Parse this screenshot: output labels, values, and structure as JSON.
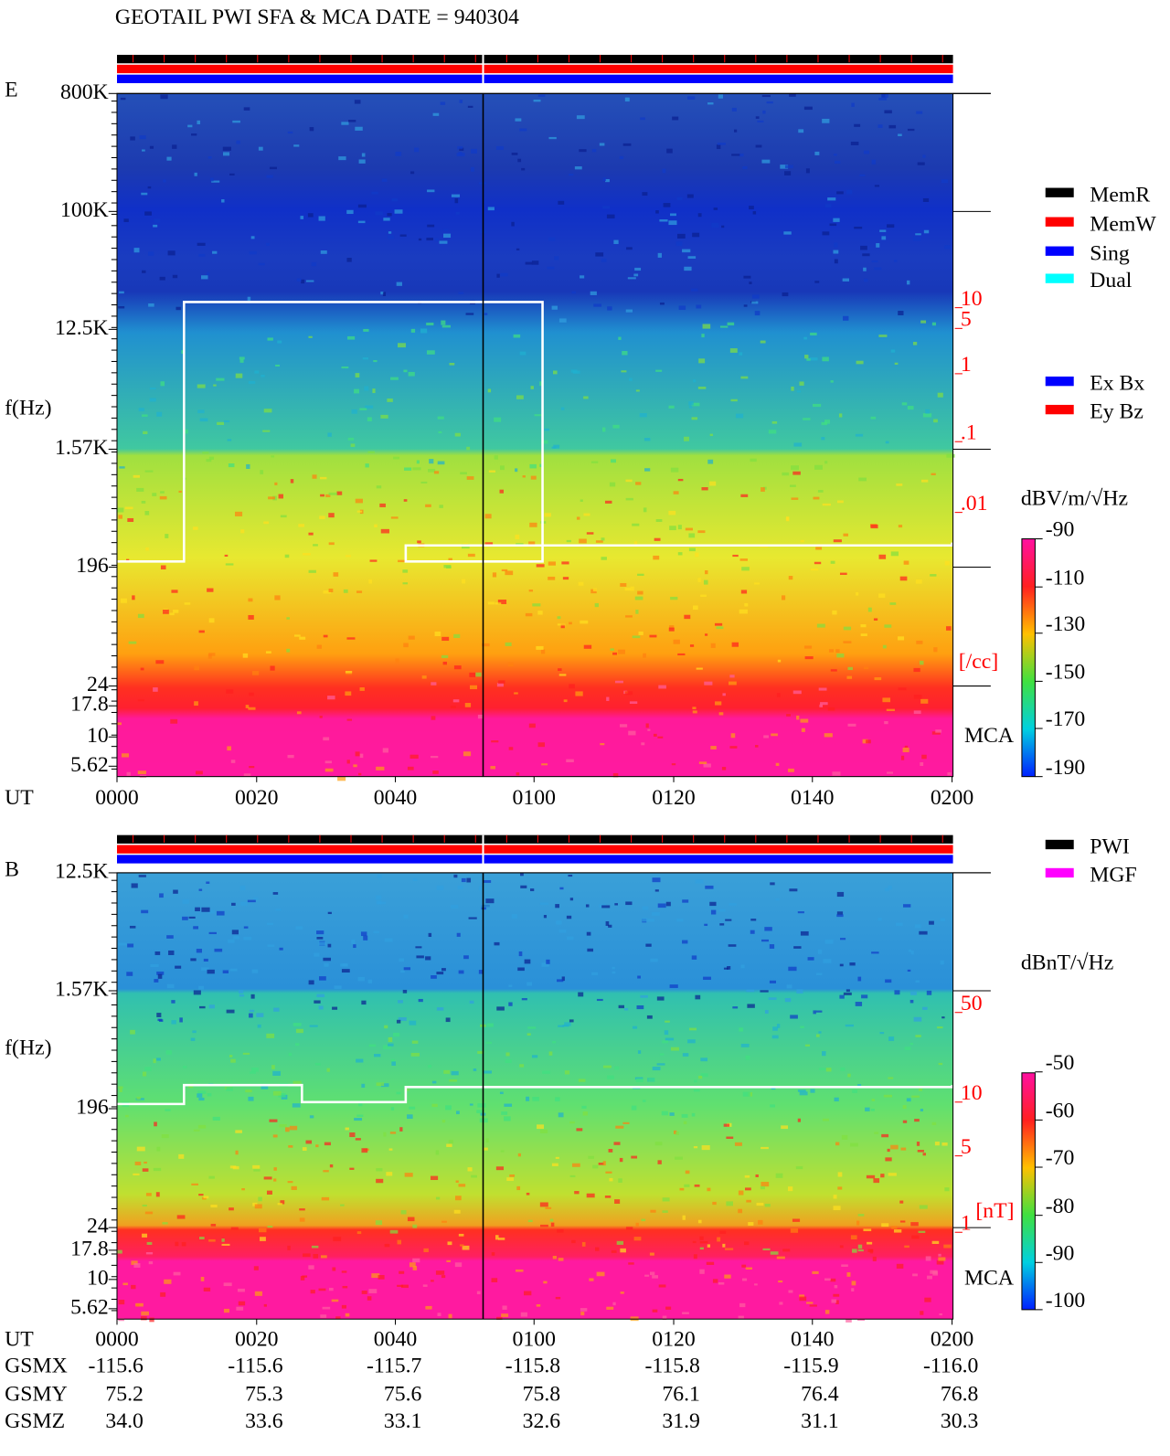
{
  "title": "GEOTAIL  PWI SFA & MCA   DATE = 940304",
  "panels": [
    {
      "label": "E",
      "ylabel": "f(Hz)",
      "freq_ticks": [
        "800K",
        "100K",
        "12.5K",
        "1.57K",
        "196",
        "24",
        "17.8",
        "10",
        "5.62"
      ],
      "time_label": "UT",
      "time_ticks": [
        "0000",
        "0020",
        "0040",
        "0100",
        "0120",
        "0140",
        "0200"
      ],
      "right_ticks": [
        "10",
        "5",
        "1",
        ".1",
        ".01"
      ],
      "right_unit": "[/cc]",
      "mca": "MCA",
      "legend": [
        "MemR",
        "MemW",
        "Sing",
        "Dual",
        "Ex Bx",
        "Ey Bz"
      ],
      "colorbar_label": "dBV/m/√Hz",
      "colorbar_ticks": [
        "-90",
        "-110",
        "-130",
        "-150",
        "-170",
        "-190"
      ]
    },
    {
      "label": "B",
      "ylabel": "f(Hz)",
      "freq_ticks": [
        "12.5K",
        "1.57K",
        "196",
        "24",
        "17.8",
        "10",
        "5.62"
      ],
      "time_label": "UT",
      "time_ticks": [
        "0000",
        "0020",
        "0040",
        "0100",
        "0120",
        "0140",
        "0200"
      ],
      "right_ticks": [
        "50",
        "10",
        "5",
        "1"
      ],
      "right_unit": "[nT]",
      "mca": "MCA",
      "legend": [
        "PWI",
        "MGF"
      ],
      "colorbar_label": "dBnT/√Hz",
      "colorbar_ticks": [
        "-50",
        "-60",
        "-70",
        "-80",
        "-90",
        "-100"
      ]
    }
  ],
  "orbit": [
    {
      "name": "GSMX",
      "values": [
        "-115.6",
        "-115.6",
        "-115.7",
        "-115.8",
        "-115.8",
        "-115.9",
        "-116.0"
      ]
    },
    {
      "name": "GSMY",
      "values": [
        "75.2",
        "75.3",
        "75.6",
        "75.8",
        "76.1",
        "76.4",
        "76.8"
      ]
    },
    {
      "name": "GSMZ",
      "values": [
        "34.0",
        "33.6",
        "33.1",
        "32.6",
        "31.9",
        "31.1",
        "30.3"
      ]
    }
  ]
}
